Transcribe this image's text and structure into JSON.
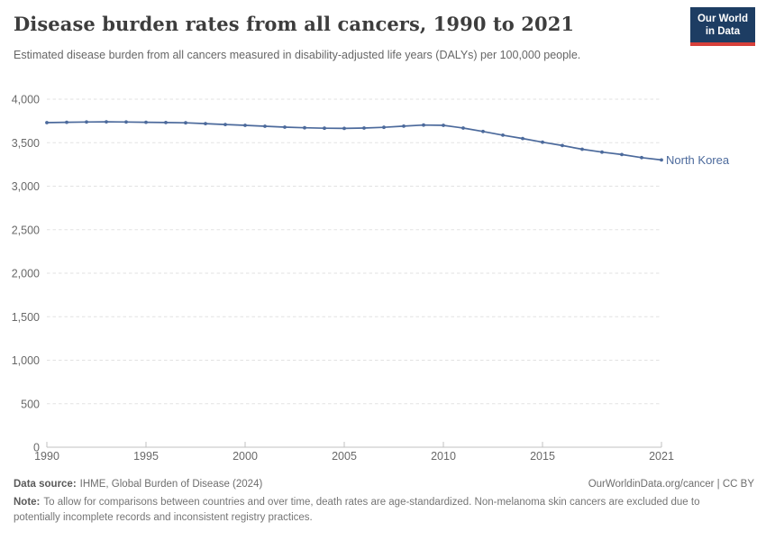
{
  "header": {
    "title": "Disease burden rates from all cancers, 1990 to 2021",
    "subtitle": "Estimated disease burden from all cancers measured in disability-adjusted life years (DALYs) per 100,000 people.",
    "logo": {
      "line1": "Our World",
      "line2": "in Data",
      "bg_color": "#1d3d63",
      "accent_color": "#d7403a"
    }
  },
  "chart_data": {
    "type": "line",
    "title": "Disease burden rates from all cancers, 1990 to 2021",
    "subtitle": "Estimated disease burden from all cancers measured in disability-adjusted life years (DALYs) per 100,000 people.",
    "xlabel": "",
    "ylabel": "DALYs per 100,000 people",
    "xlim": [
      1990,
      2021
    ],
    "ylim": [
      0,
      4000
    ],
    "grid": "horizontal-dashed",
    "legend_position": "end-of-line",
    "line_color": "#4c6a9c",
    "grid_color": "#e2e2e2",
    "axis_color": "#c0c0c0",
    "tick_text_color": "#696969",
    "x": [
      1990,
      1991,
      1992,
      1993,
      1994,
      1995,
      1996,
      1997,
      1998,
      1999,
      2000,
      2001,
      2002,
      2003,
      2004,
      2005,
      2006,
      2007,
      2008,
      2009,
      2010,
      2011,
      2012,
      2013,
      2014,
      2015,
      2016,
      2017,
      2018,
      2019,
      2020,
      2021
    ],
    "series": [
      {
        "name": "North Korea",
        "color": "#4c6a9c",
        "values": [
          3731,
          3735,
          3738,
          3740,
          3738,
          3735,
          3732,
          3728,
          3719,
          3709,
          3699,
          3689,
          3679,
          3671,
          3666,
          3664,
          3668,
          3677,
          3690,
          3703,
          3699,
          3668,
          3629,
          3587,
          3548,
          3506,
          3467,
          3425,
          3392,
          3364,
          3329,
          3302
        ]
      }
    ],
    "y_ticks": [
      {
        "v": 0,
        "label": "0"
      },
      {
        "v": 500,
        "label": "500"
      },
      {
        "v": 1000,
        "label": "1,000"
      },
      {
        "v": 1500,
        "label": "1,500"
      },
      {
        "v": 2000,
        "label": "2,000"
      },
      {
        "v": 2500,
        "label": "2,500"
      },
      {
        "v": 3000,
        "label": "3,000"
      },
      {
        "v": 3500,
        "label": "3,500"
      },
      {
        "v": 4000,
        "label": "4,000"
      }
    ],
    "x_ticks": [
      {
        "v": 1990,
        "label": "1990"
      },
      {
        "v": 1995,
        "label": "1995"
      },
      {
        "v": 2000,
        "label": "2000"
      },
      {
        "v": 2005,
        "label": "2005"
      },
      {
        "v": 2010,
        "label": "2010"
      },
      {
        "v": 2015,
        "label": "2015"
      },
      {
        "v": 2021,
        "label": "2021"
      }
    ]
  },
  "footer": {
    "source_label": "Data source:",
    "source_value": "IHME, Global Burden of Disease (2024)",
    "link": "OurWorldinData.org/cancer | CC BY",
    "note_label": "Note:",
    "note_value": "To allow for comparisons between countries and over time, death rates are age-standardized. Non-melanoma skin cancers are excluded due to potentially incomplete records and inconsistent registry practices."
  }
}
